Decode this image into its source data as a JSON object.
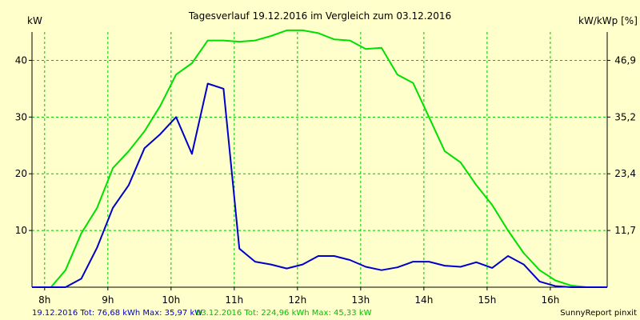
{
  "chart_data": {
    "type": "line",
    "title": "Tagesverlauf 19.12.2016 im Vergleich zum 03.12.2016",
    "ylabel_left": "kW",
    "ylabel_right": "kW/kWp [%]",
    "x_range": [
      7.8,
      16.9
    ],
    "y_range": [
      0,
      45
    ],
    "x_ticks": [
      {
        "value": 8,
        "label": "8h"
      },
      {
        "value": 9,
        "label": "9h"
      },
      {
        "value": 10,
        "label": "10h"
      },
      {
        "value": 11,
        "label": "11h"
      },
      {
        "value": 12,
        "label": "12h"
      },
      {
        "value": 13,
        "label": "13h"
      },
      {
        "value": 14,
        "label": "14h"
      },
      {
        "value": 15,
        "label": "15h"
      },
      {
        "value": 16,
        "label": "16h"
      }
    ],
    "y_ticks_left": [
      {
        "value": 10,
        "label": "10"
      },
      {
        "value": 20,
        "label": "20"
      },
      {
        "value": 30,
        "label": "30"
      },
      {
        "value": 40,
        "label": "40"
      }
    ],
    "y_ticks_right": [
      {
        "value": 10,
        "label": "11,7"
      },
      {
        "value": 20,
        "label": "23,4"
      },
      {
        "value": 30,
        "label": "35,2"
      },
      {
        "value": 40,
        "label": "46,9"
      }
    ],
    "grid": true,
    "series": [
      {
        "name": "03.12.2016",
        "color": "#00e000",
        "points": [
          [
            7.8,
            0
          ],
          [
            8.1,
            0
          ],
          [
            8.33,
            3
          ],
          [
            8.58,
            9.5
          ],
          [
            8.83,
            14
          ],
          [
            9.08,
            21
          ],
          [
            9.33,
            24
          ],
          [
            9.58,
            27.5
          ],
          [
            9.83,
            32
          ],
          [
            10.08,
            37.5
          ],
          [
            10.33,
            39.5
          ],
          [
            10.58,
            43.5
          ],
          [
            10.83,
            43.5
          ],
          [
            11.08,
            43.3
          ],
          [
            11.33,
            43.5
          ],
          [
            11.58,
            44.3
          ],
          [
            11.83,
            45.3
          ],
          [
            12.08,
            45.3
          ],
          [
            12.33,
            44.8
          ],
          [
            12.58,
            43.7
          ],
          [
            12.83,
            43.5
          ],
          [
            13.08,
            42
          ],
          [
            13.33,
            42.2
          ],
          [
            13.58,
            37.5
          ],
          [
            13.83,
            36
          ],
          [
            14.08,
            30
          ],
          [
            14.33,
            24
          ],
          [
            14.58,
            22
          ],
          [
            14.83,
            18
          ],
          [
            15.08,
            14.5
          ],
          [
            15.33,
            10
          ],
          [
            15.58,
            6
          ],
          [
            15.83,
            3
          ],
          [
            16.08,
            1.2
          ],
          [
            16.33,
            0.3
          ],
          [
            16.58,
            0
          ],
          [
            16.9,
            0
          ]
        ]
      },
      {
        "name": "19.12.2016",
        "color": "#0000cc",
        "points": [
          [
            7.8,
            0
          ],
          [
            8.33,
            0
          ],
          [
            8.58,
            1.5
          ],
          [
            8.83,
            7
          ],
          [
            9.08,
            14
          ],
          [
            9.33,
            18
          ],
          [
            9.58,
            24.5
          ],
          [
            9.83,
            27
          ],
          [
            10.08,
            30
          ],
          [
            10.33,
            23.5
          ],
          [
            10.58,
            35.9
          ],
          [
            10.83,
            35
          ],
          [
            11.08,
            6.8
          ],
          [
            11.33,
            4.5
          ],
          [
            11.58,
            4
          ],
          [
            11.83,
            3.3
          ],
          [
            12.08,
            4
          ],
          [
            12.33,
            5.5
          ],
          [
            12.58,
            5.5
          ],
          [
            12.83,
            4.8
          ],
          [
            13.08,
            3.6
          ],
          [
            13.33,
            3
          ],
          [
            13.58,
            3.5
          ],
          [
            13.83,
            4.5
          ],
          [
            14.08,
            4.5
          ],
          [
            14.33,
            3.8
          ],
          [
            14.58,
            3.6
          ],
          [
            14.83,
            4.4
          ],
          [
            15.08,
            3.4
          ],
          [
            15.33,
            5.5
          ],
          [
            15.58,
            4
          ],
          [
            15.83,
            1
          ],
          [
            16.08,
            0.2
          ],
          [
            16.33,
            0
          ],
          [
            16.9,
            0
          ]
        ]
      }
    ],
    "footer": {
      "left": "19.12.2016 Tot: 76,68 kWh Max: 35,97 kW",
      "middle": "03.12.2016 Tot: 224,96 kWh Max: 45,33 kW",
      "right": "SunnyReport pinxit"
    }
  },
  "colors": {
    "background": "#ffffcc",
    "grid": "#00c000",
    "axis": "#000000",
    "footer_left": "#0000cc",
    "footer_middle": "#00c000"
  }
}
